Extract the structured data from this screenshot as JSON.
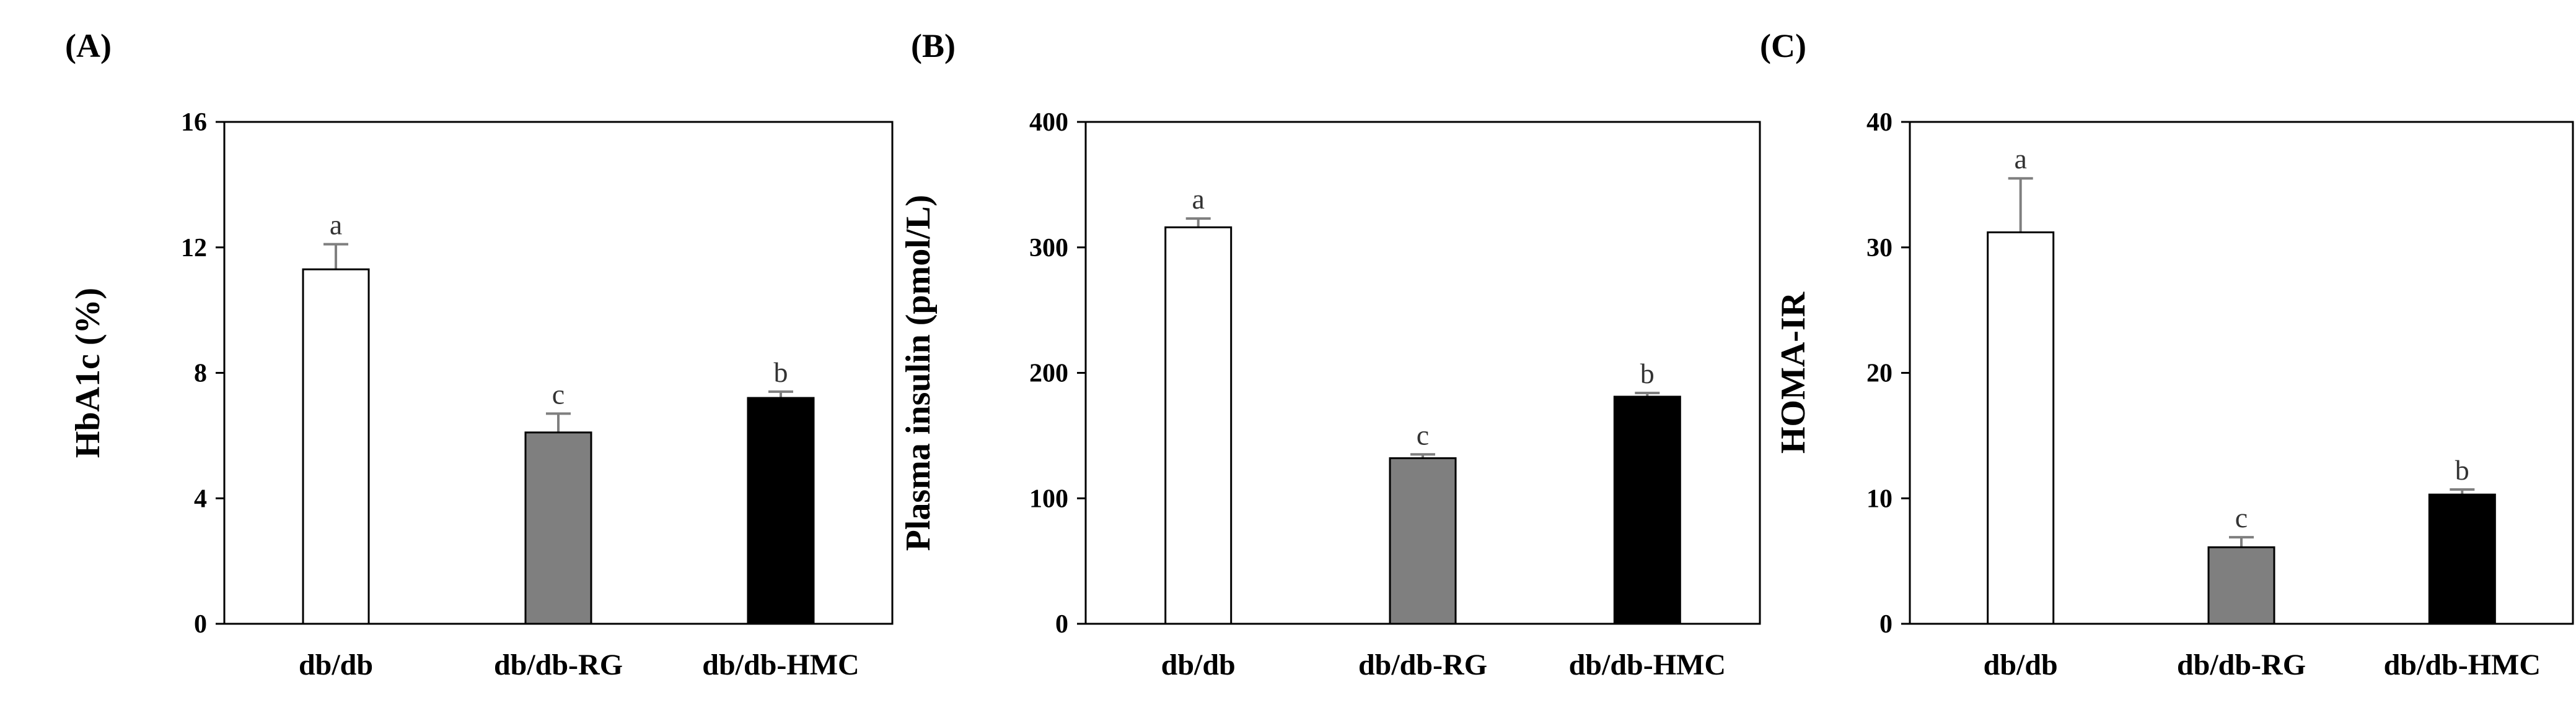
{
  "colors": {
    "axis": "#000000",
    "error_bar": "#7f7f7f",
    "bar_fills": [
      "#ffffff",
      "#7f7f7f",
      "#000000"
    ],
    "bar_strokes": [
      "#000000",
      "#000000",
      "#000000"
    ]
  },
  "chart_data": [
    {
      "type": "bar",
      "panel_label": "(A)",
      "title": "",
      "xlabel": "",
      "ylabel": "HbA1c  (%)",
      "ylim": [
        0,
        16
      ],
      "yticks": [
        0,
        4,
        8,
        12,
        16
      ],
      "grid": false,
      "categories": [
        "db/db",
        "db/db-RG",
        "db/db-HMC"
      ],
      "values": [
        11.3,
        6.1,
        7.2
      ],
      "errors": [
        0.8,
        0.6,
        0.2
      ],
      "significance": [
        "a",
        "c",
        "b"
      ]
    },
    {
      "type": "bar",
      "panel_label": "(B)",
      "title": "",
      "xlabel": "",
      "ylabel": "Plasma insulin (pmol/L)",
      "ylim": [
        0,
        400
      ],
      "yticks": [
        0,
        100,
        200,
        300,
        400
      ],
      "grid": false,
      "categories": [
        "db/db",
        "db/db-RG",
        "db/db-HMC"
      ],
      "values": [
        316,
        132,
        181
      ],
      "errors": [
        7,
        3,
        3
      ],
      "significance": [
        "a",
        "c",
        "b"
      ]
    },
    {
      "type": "bar",
      "panel_label": "(C)",
      "title": "",
      "xlabel": "",
      "ylabel": "HOMA-IR",
      "ylim": [
        0,
        40
      ],
      "yticks": [
        0,
        10,
        20,
        30,
        40
      ],
      "grid": false,
      "categories": [
        "db/db",
        "db/db-RG",
        "db/db-HMC"
      ],
      "values": [
        31.2,
        6.1,
        10.3
      ],
      "errors": [
        4.3,
        0.8,
        0.4
      ],
      "significance": [
        "a",
        "c",
        "b"
      ]
    }
  ]
}
